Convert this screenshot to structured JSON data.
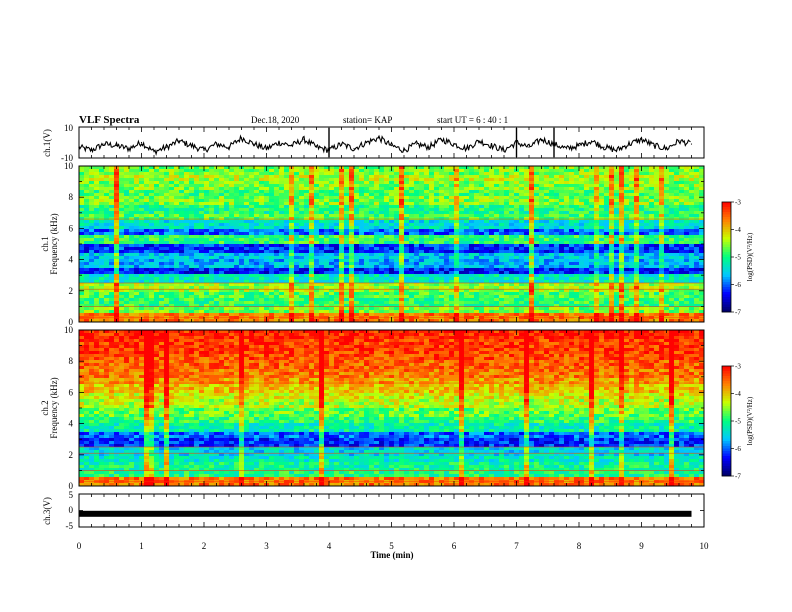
{
  "header": {
    "title": "VLF Spectra",
    "date": "Dec.18, 2020",
    "station": "station= KAP",
    "start_ut": "start  UT =   6 : 40 : 1"
  },
  "chart_data": [
    {
      "type": "line",
      "panel": "ch1-waveform",
      "ylabel": "ch.1(V)",
      "ylim": [
        -10,
        10
      ],
      "yticks": [
        "10",
        "-10"
      ],
      "xlim": [
        0,
        10
      ],
      "x": [
        0.0,
        0.2,
        0.4,
        0.6,
        0.8,
        1.0,
        1.2,
        1.4,
        1.6,
        1.8,
        2.0,
        2.2,
        2.4,
        2.6,
        2.8,
        3.0,
        3.2,
        3.4,
        3.6,
        3.8,
        4.0,
        4.2,
        4.4,
        4.6,
        4.8,
        5.0,
        5.2,
        5.4,
        5.6,
        5.8,
        6.0,
        6.2,
        6.4,
        6.6,
        6.8,
        7.0,
        7.2,
        7.4,
        7.6,
        7.8,
        8.0,
        8.2,
        8.4,
        8.6,
        8.8,
        9.0,
        9.2,
        9.4,
        9.6,
        9.8
      ],
      "values": [
        -3,
        -5,
        -1,
        -2,
        -4,
        0,
        -6,
        -3,
        1,
        -2,
        -5,
        -1,
        -3,
        3,
        -1,
        -4,
        0,
        -2,
        2,
        -3,
        -5,
        -1,
        -4,
        0,
        3,
        -2,
        -5,
        -1,
        -3,
        2,
        -1,
        -4,
        1,
        -2,
        -5,
        0,
        -3,
        2,
        -1,
        -4,
        -2,
        1,
        -3,
        -5,
        -1,
        2,
        -2,
        -4,
        1,
        -1
      ]
    },
    {
      "type": "heatmap",
      "panel": "ch1-spectrogram",
      "ylabel_main": "ch.1",
      "ylabel_sub": "Frequency (kHz)",
      "ylim": [
        0,
        10
      ],
      "yticks": [
        "0",
        "2",
        "4",
        "6",
        "8",
        "10"
      ],
      "xlim": [
        0,
        10
      ],
      "colorbar": {
        "label": "log(PSD)(V²/Hz)",
        "ticks": [
          "-3",
          "-4",
          "-5",
          "-6",
          "-7"
        ],
        "range": [
          -7,
          -3
        ]
      },
      "levels": [
        {
          "f": 0.25,
          "v": -3.6
        },
        {
          "f": 0.75,
          "v": -4.6
        },
        {
          "f": 1.25,
          "v": -4.9
        },
        {
          "f": 1.75,
          "v": -4.8
        },
        {
          "f": 2.25,
          "v": -4.5
        },
        {
          "f": 2.75,
          "v": -5.3
        },
        {
          "f": 3.25,
          "v": -6.3
        },
        {
          "f": 3.75,
          "v": -5.7
        },
        {
          "f": 4.25,
          "v": -5.6
        },
        {
          "f": 4.75,
          "v": -6.2
        },
        {
          "f": 5.25,
          "v": -4.9
        },
        {
          "f": 5.75,
          "v": -6.0
        },
        {
          "f": 6.25,
          "v": -5.4
        },
        {
          "f": 6.75,
          "v": -4.8
        },
        {
          "f": 7.25,
          "v": -5.0
        },
        {
          "f": 7.75,
          "v": -4.6
        },
        {
          "f": 8.25,
          "v": -4.8
        },
        {
          "f": 8.75,
          "v": -4.6
        },
        {
          "f": 9.25,
          "v": -4.4
        },
        {
          "f": 9.75,
          "v": -4.6
        }
      ]
    },
    {
      "type": "heatmap",
      "panel": "ch2-spectrogram",
      "ylabel_main": "ch.2",
      "ylabel_sub": "Frequency (kHz)",
      "ylim": [
        0,
        10
      ],
      "yticks": [
        "0",
        "2",
        "4",
        "6",
        "8",
        "10"
      ],
      "xlim": [
        0,
        10
      ],
      "colorbar": {
        "label": "log(PSD)(V²/Hz)",
        "ticks": [
          "-3",
          "-4",
          "-5",
          "-6",
          "-7"
        ],
        "range": [
          -7,
          -3
        ]
      },
      "levels": [
        {
          "f": 0.25,
          "v": -3.6
        },
        {
          "f": 0.75,
          "v": -5.0
        },
        {
          "f": 1.25,
          "v": -5.1
        },
        {
          "f": 1.75,
          "v": -5.3
        },
        {
          "f": 2.25,
          "v": -5.5
        },
        {
          "f": 2.75,
          "v": -6.2
        },
        {
          "f": 3.25,
          "v": -6.0
        },
        {
          "f": 3.75,
          "v": -5.2
        },
        {
          "f": 4.25,
          "v": -4.9
        },
        {
          "f": 4.75,
          "v": -4.7
        },
        {
          "f": 5.25,
          "v": -4.4
        },
        {
          "f": 5.75,
          "v": -4.2
        },
        {
          "f": 6.25,
          "v": -4.0
        },
        {
          "f": 6.75,
          "v": -3.8
        },
        {
          "f": 7.25,
          "v": -3.6
        },
        {
          "f": 7.75,
          "v": -3.5
        },
        {
          "f": 8.25,
          "v": -3.4
        },
        {
          "f": 8.75,
          "v": -3.3
        },
        {
          "f": 9.25,
          "v": -3.3
        },
        {
          "f": 9.75,
          "v": -3.2
        }
      ]
    },
    {
      "type": "line",
      "panel": "ch3-waveform",
      "ylabel": "ch.3(V)",
      "ylim": [
        -5,
        5
      ],
      "yticks": [
        "5",
        "0",
        "-5"
      ],
      "xlim": [
        0,
        10
      ],
      "xlabel": "Time (min)",
      "xticks": [
        "0",
        "1",
        "2",
        "3",
        "4",
        "5",
        "6",
        "7",
        "8",
        "9",
        "10"
      ],
      "x": [
        0,
        9.8
      ],
      "values": [
        -1,
        -1
      ]
    }
  ],
  "colors": {
    "axis": "#000000",
    "trace": "#000000",
    "colormap": [
      "#000066",
      "#0000ff",
      "#00c8ff",
      "#00ff80",
      "#c8ff00",
      "#ff8000",
      "#ff0000",
      "#ffffff"
    ]
  }
}
